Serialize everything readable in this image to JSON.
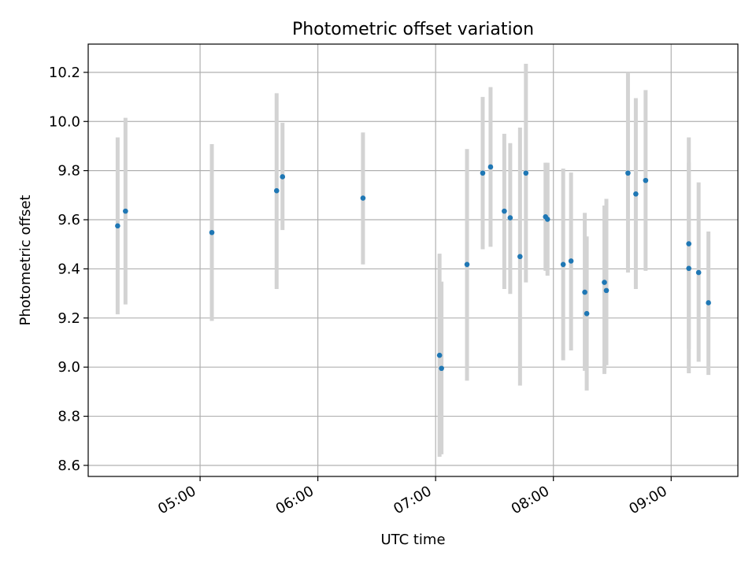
{
  "chart_data": {
    "type": "scatter",
    "title": "Photometric offset variation",
    "xlabel": "UTC time",
    "ylabel": "Photometric offset",
    "x_unit": "UTC time (HH:MM)",
    "xlim": [
      "04:03",
      "09:34"
    ],
    "ylim": [
      8.555,
      10.315
    ],
    "x_ticks": [
      "05:00",
      "06:00",
      "07:00",
      "08:00",
      "09:00"
    ],
    "y_ticks": [
      8.6,
      8.8,
      9.0,
      9.2,
      9.4,
      9.6,
      9.8,
      10.0,
      10.2
    ],
    "y_tick_labels": [
      "8.6",
      "8.8",
      "9.0",
      "9.2",
      "9.4",
      "9.6",
      "9.8",
      "10.0",
      "10.2"
    ],
    "grid": true,
    "legend": "none",
    "colors": {
      "point": "#1f77b4",
      "errorbar": "#d3d3d3",
      "grid": "#b0b0b0"
    },
    "series": [
      {
        "points": [
          {
            "x": "04:18",
            "y": 9.575,
            "ylow": 9.215,
            "yhigh": 9.935
          },
          {
            "x": "04:22",
            "y": 9.635,
            "ylow": 9.255,
            "yhigh": 10.015
          },
          {
            "x": "05:06",
            "y": 9.548,
            "ylow": 9.188,
            "yhigh": 9.908
          },
          {
            "x": "05:39",
            "y": 9.718,
            "ylow": 9.318,
            "yhigh": 10.115
          },
          {
            "x": "05:42",
            "y": 9.775,
            "ylow": 9.558,
            "yhigh": 9.995
          },
          {
            "x": "06:23",
            "y": 9.688,
            "ylow": 9.418,
            "yhigh": 9.955
          },
          {
            "x": "07:02",
            "y": 9.048,
            "ylow": 8.635,
            "yhigh": 9.462
          },
          {
            "x": "07:03",
            "y": 8.995,
            "ylow": 8.645,
            "yhigh": 9.348
          },
          {
            "x": "07:16",
            "y": 9.418,
            "ylow": 8.945,
            "yhigh": 9.888
          },
          {
            "x": "07:24",
            "y": 9.79,
            "ylow": 9.48,
            "yhigh": 10.1
          },
          {
            "x": "07:28",
            "y": 9.815,
            "ylow": 9.49,
            "yhigh": 10.14
          },
          {
            "x": "07:35",
            "y": 9.635,
            "ylow": 9.318,
            "yhigh": 9.95
          },
          {
            "x": "07:38",
            "y": 9.608,
            "ylow": 9.298,
            "yhigh": 9.912
          },
          {
            "x": "07:43",
            "y": 9.45,
            "ylow": 8.925,
            "yhigh": 9.975
          },
          {
            "x": "07:46",
            "y": 9.79,
            "ylow": 9.345,
            "yhigh": 10.235
          },
          {
            "x": "07:56",
            "y": 9.612,
            "ylow": 9.392,
            "yhigh": 9.832
          },
          {
            "x": "07:57",
            "y": 9.602,
            "ylow": 9.372,
            "yhigh": 9.832
          },
          {
            "x": "08:05",
            "y": 9.418,
            "ylow": 9.028,
            "yhigh": 9.808
          },
          {
            "x": "08:09",
            "y": 9.432,
            "ylow": 9.068,
            "yhigh": 9.792
          },
          {
            "x": "08:16",
            "y": 9.305,
            "ylow": 8.985,
            "yhigh": 9.628
          },
          {
            "x": "08:17",
            "y": 9.218,
            "ylow": 8.905,
            "yhigh": 9.532
          },
          {
            "x": "08:26",
            "y": 9.345,
            "ylow": 8.972,
            "yhigh": 9.658
          },
          {
            "x": "08:27",
            "y": 9.312,
            "ylow": 9.008,
            "yhigh": 9.685
          },
          {
            "x": "08:38",
            "y": 9.79,
            "ylow": 9.385,
            "yhigh": 10.2
          },
          {
            "x": "08:42",
            "y": 9.705,
            "ylow": 9.318,
            "yhigh": 10.095
          },
          {
            "x": "08:47",
            "y": 9.76,
            "ylow": 9.392,
            "yhigh": 10.128
          },
          {
            "x": "09:09",
            "y": 9.402,
            "ylow": 8.975,
            "yhigh": 9.832
          },
          {
            "x": "09:09",
            "y": 9.502,
            "ylow": 9.075,
            "yhigh": 9.935
          },
          {
            "x": "09:14",
            "y": 9.385,
            "ylow": 9.022,
            "yhigh": 9.752
          },
          {
            "x": "09:19",
            "y": 9.262,
            "ylow": 8.968,
            "yhigh": 9.552
          }
        ]
      }
    ]
  }
}
